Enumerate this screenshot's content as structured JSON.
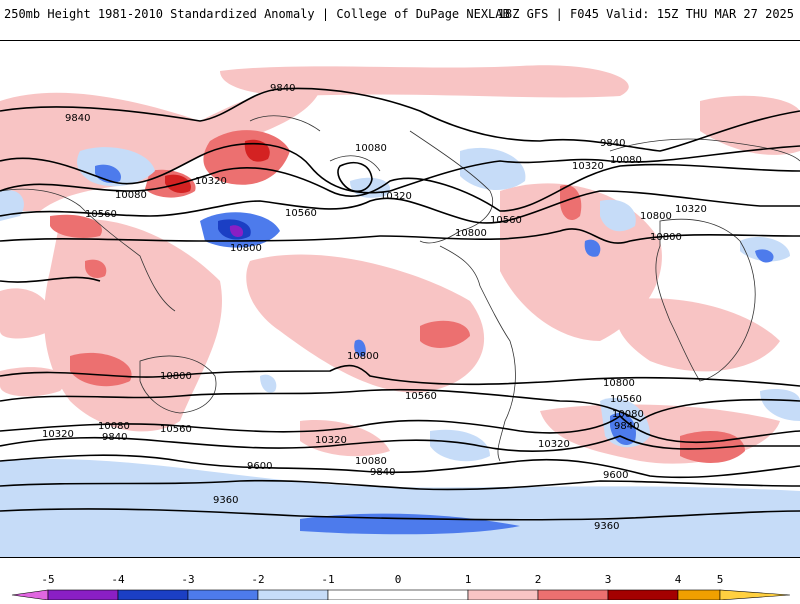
{
  "header": {
    "title": "250mb Height 1981-2010 Standardized Anomaly | College of DuPage NEXLAB",
    "run_info": "18Z GFS | F045 Valid: 15Z THU MAR 27 2025"
  },
  "colors": {
    "neg5": "#e066e0",
    "neg4": "#8a1fc4",
    "neg3": "#1b3fc4",
    "neg2": "#4d7bec",
    "neg1": "#c6dcf8",
    "zero": "#ffffff",
    "pos1": "#f8c4c4",
    "pos2": "#ec7070",
    "pos3": "#d42222",
    "pos4": "#a40000",
    "pos5": "#f0a000",
    "contour": "#000000",
    "coast": "#333333"
  },
  "colorbar": {
    "ticks": [
      "-5",
      "-4",
      "-3",
      "-2",
      "-1",
      "0",
      "1",
      "2",
      "3",
      "4",
      "5"
    ]
  },
  "contour_labels": [
    "9840",
    "9840",
    "10080",
    "10320",
    "10560",
    "10800",
    "10080",
    "10320",
    "10560",
    "10800",
    "9840",
    "10080",
    "10320",
    "10560",
    "10800",
    "10320",
    "10800",
    "10800",
    "10560",
    "10800",
    "10320",
    "10560",
    "10080",
    "9840",
    "10320",
    "10080",
    "9840",
    "9600",
    "9360",
    "10800",
    "10560",
    "10080",
    "9840",
    "10320",
    "9600",
    "9360"
  ]
}
